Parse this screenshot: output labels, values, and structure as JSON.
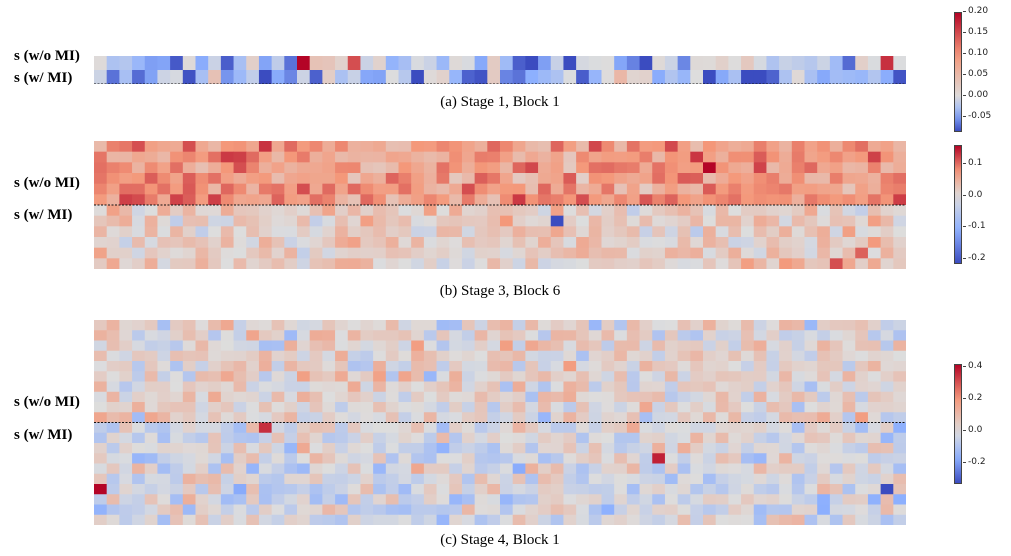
{
  "chart_data": [
    {
      "type": "heatmap",
      "caption": "(a) Stage 1, Block 1",
      "row_groups": [
        "s (w/o MI)",
        "s (w/ MI)"
      ],
      "rows": 2,
      "cols": 64,
      "split_after_row": 1,
      "colorbar": {
        "min": -0.08,
        "max": 0.2,
        "ticks": [
          "0.20",
          "0.15",
          "0.10",
          "0.05",
          "0.00",
          "-0.05"
        ],
        "tick_values": [
          0.2,
          0.15,
          0.1,
          0.05,
          0.0,
          -0.05
        ]
      },
      "hot_cells": [
        {
          "row": 0,
          "col": 16,
          "value": 0.2
        },
        {
          "row": 0,
          "col": 20,
          "value": 0.15
        },
        {
          "row": 0,
          "col": 62,
          "value": 0.17
        },
        {
          "row": 1,
          "col": 13,
          "value": -0.08
        }
      ],
      "base_mean": -0.025,
      "base_spread": 0.045,
      "group_means": [
        -0.02,
        -0.03
      ]
    },
    {
      "type": "heatmap",
      "caption": "(b) Stage 3, Block 6",
      "row_groups": [
        "s (w/o MI)",
        "s (w/ MI)"
      ],
      "rows": 12,
      "cols": 64,
      "split_after_row": 5,
      "colorbar": {
        "min": -0.21,
        "max": 0.16,
        "ticks": [
          "0.1",
          "0.0",
          "-0.1",
          "-0.2"
        ],
        "tick_values": [
          0.1,
          0.0,
          -0.1,
          -0.2
        ]
      },
      "hot_cells": [
        {
          "row": 2,
          "col": 48,
          "value": 0.16
        },
        {
          "row": 7,
          "col": 36,
          "value": -0.21
        },
        {
          "row": 11,
          "col": 58,
          "value": 0.12
        },
        {
          "row": 10,
          "col": 60,
          "value": 0.11
        }
      ],
      "base_mean": 0.05,
      "base_spread": 0.035,
      "group_means": [
        0.075,
        0.02
      ]
    },
    {
      "type": "heatmap",
      "caption": "(c) Stage 4, Block 1",
      "row_groups": [
        "s (w/o MI)",
        "s (w/ MI)"
      ],
      "rows": 20,
      "cols": 64,
      "split_after_row": 9,
      "colorbar": {
        "min": -0.32,
        "max": 0.42,
        "ticks": [
          "0.4",
          "0.2",
          "0.0",
          "-0.2"
        ],
        "tick_values": [
          0.4,
          0.2,
          0.0,
          -0.2
        ]
      },
      "hot_cells": [
        {
          "row": 16,
          "col": 0,
          "value": 0.42
        },
        {
          "row": 13,
          "col": 44,
          "value": 0.38
        },
        {
          "row": 16,
          "col": 62,
          "value": -0.32
        },
        {
          "row": 10,
          "col": 13,
          "value": 0.36
        }
      ],
      "base_mean": 0.0,
      "base_spread": 0.09,
      "group_means": [
        0.03,
        -0.01
      ]
    }
  ]
}
